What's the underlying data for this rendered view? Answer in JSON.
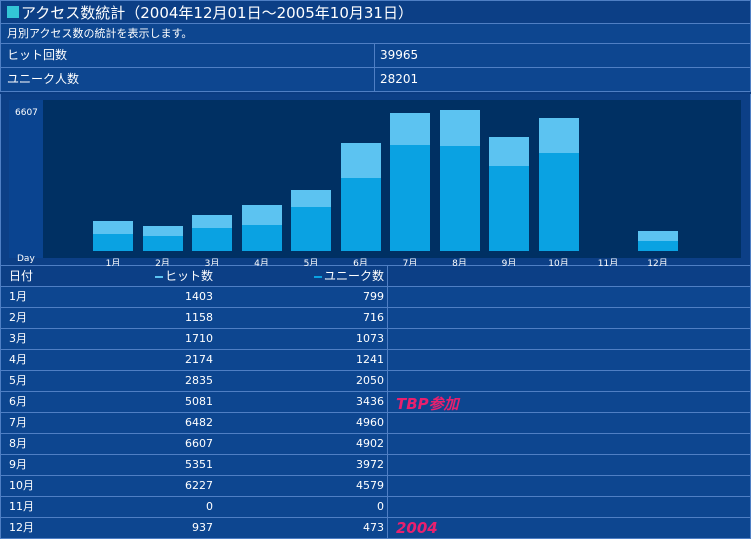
{
  "title": "アクセス数統計（2004年12月01日～2005年10月31日）",
  "description": "月別アクセス数の統計を表示します。",
  "summary": [
    {
      "label": "ヒット回数",
      "value": "39965"
    },
    {
      "label": "ユニーク人数",
      "value": "28201"
    }
  ],
  "chart_data": {
    "type": "bar",
    "ymax_label": "6607",
    "xlabel": "Day",
    "ylim": [
      0,
      6607
    ],
    "categories": [
      "1月",
      "2月",
      "3月",
      "4月",
      "5月",
      "6月",
      "7月",
      "8月",
      "9月",
      "10月",
      "11月",
      "12月"
    ],
    "series": [
      {
        "name": "ヒット数",
        "values": [
          1403,
          1158,
          1710,
          2174,
          2835,
          5081,
          6482,
          6607,
          5351,
          6227,
          0,
          937
        ]
      },
      {
        "name": "ユニーク数",
        "values": [
          799,
          716,
          1073,
          1241,
          2050,
          3436,
          4960,
          4902,
          3972,
          4579,
          0,
          473
        ]
      }
    ],
    "colors": {
      "hits": "#5cc3f1",
      "unique": "#0aa2e2"
    }
  },
  "table": {
    "headers": [
      "日付",
      "ヒット数",
      "ユニーク数"
    ],
    "rows": [
      {
        "month": "1月",
        "hits": "1403",
        "unique": "799",
        "note": ""
      },
      {
        "month": "2月",
        "hits": "1158",
        "unique": "716",
        "note": ""
      },
      {
        "month": "3月",
        "hits": "1710",
        "unique": "1073",
        "note": ""
      },
      {
        "month": "4月",
        "hits": "2174",
        "unique": "1241",
        "note": ""
      },
      {
        "month": "5月",
        "hits": "2835",
        "unique": "2050",
        "note": ""
      },
      {
        "month": "6月",
        "hits": "5081",
        "unique": "3436",
        "note": "TBP参加"
      },
      {
        "month": "7月",
        "hits": "6482",
        "unique": "4960",
        "note": ""
      },
      {
        "month": "8月",
        "hits": "6607",
        "unique": "4902",
        "note": ""
      },
      {
        "month": "9月",
        "hits": "5351",
        "unique": "3972",
        "note": ""
      },
      {
        "month": "10月",
        "hits": "6227",
        "unique": "4579",
        "note": ""
      },
      {
        "month": "11月",
        "hits": "0",
        "unique": "0",
        "note": ""
      },
      {
        "month": "12月",
        "hits": "937",
        "unique": "473",
        "note": "2004"
      }
    ]
  }
}
